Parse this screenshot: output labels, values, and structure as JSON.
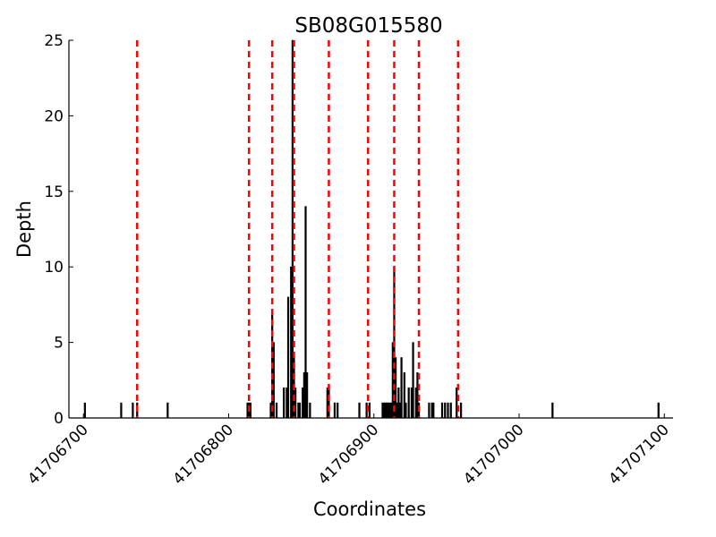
{
  "chart_data": {
    "type": "bar",
    "title": "SB08G015580",
    "xlabel": "Coordinates",
    "ylabel": "Depth",
    "x": [
      41706701,
      41706726,
      41706734,
      41706737,
      41706758,
      41706813,
      41706814,
      41706815,
      41706829,
      41706830,
      41706831,
      41706833,
      41706838,
      41706840,
      41706841,
      41706843,
      41706844,
      41706845,
      41706846,
      41706848,
      41706849,
      41706851,
      41706852,
      41706853,
      41706854,
      41706856,
      41706868,
      41706869,
      41706873,
      41706875,
      41706890,
      41706895,
      41706897,
      41706906,
      41706907,
      41706908,
      41706909,
      41706910,
      41706911,
      41706912,
      41706913,
      41706914,
      41706915,
      41706916,
      41706917,
      41706918,
      41706919,
      41706921,
      41706922,
      41706924,
      41706926,
      41706927,
      41706929,
      41706930,
      41706931,
      41706938,
      41706940,
      41706941,
      41706947,
      41706949,
      41706951,
      41706953,
      41706957,
      41706960,
      41707023,
      41707096
    ],
    "values": [
      1,
      1,
      1,
      1,
      1,
      1,
      1,
      1,
      1,
      7,
      5,
      1,
      2,
      2,
      8,
      10,
      25,
      4,
      2,
      1,
      1,
      2,
      3,
      14,
      3,
      1,
      2,
      2,
      1,
      1,
      1,
      1,
      1,
      1,
      1,
      1,
      1,
      1,
      1,
      1,
      5,
      10,
      4,
      1,
      2,
      1,
      4,
      3,
      1,
      2,
      2,
      5,
      2,
      3,
      1,
      1,
      1,
      1,
      1,
      1,
      1,
      1,
      2,
      1,
      1,
      1
    ],
    "color": "#000000",
    "vlines": {
      "x": [
        41706737,
        41706814,
        41706830,
        41706845,
        41706869,
        41706896,
        41706914,
        41706931,
        41706958
      ],
      "color": "#ff0000"
    },
    "xlim": [
      41706690,
      41707106
    ],
    "xticks": [
      41706700,
      41706800,
      41706900,
      41707000,
      41707100
    ],
    "ylim": [
      0,
      25
    ],
    "yticks": [
      0,
      5,
      10,
      15,
      20,
      25
    ]
  }
}
